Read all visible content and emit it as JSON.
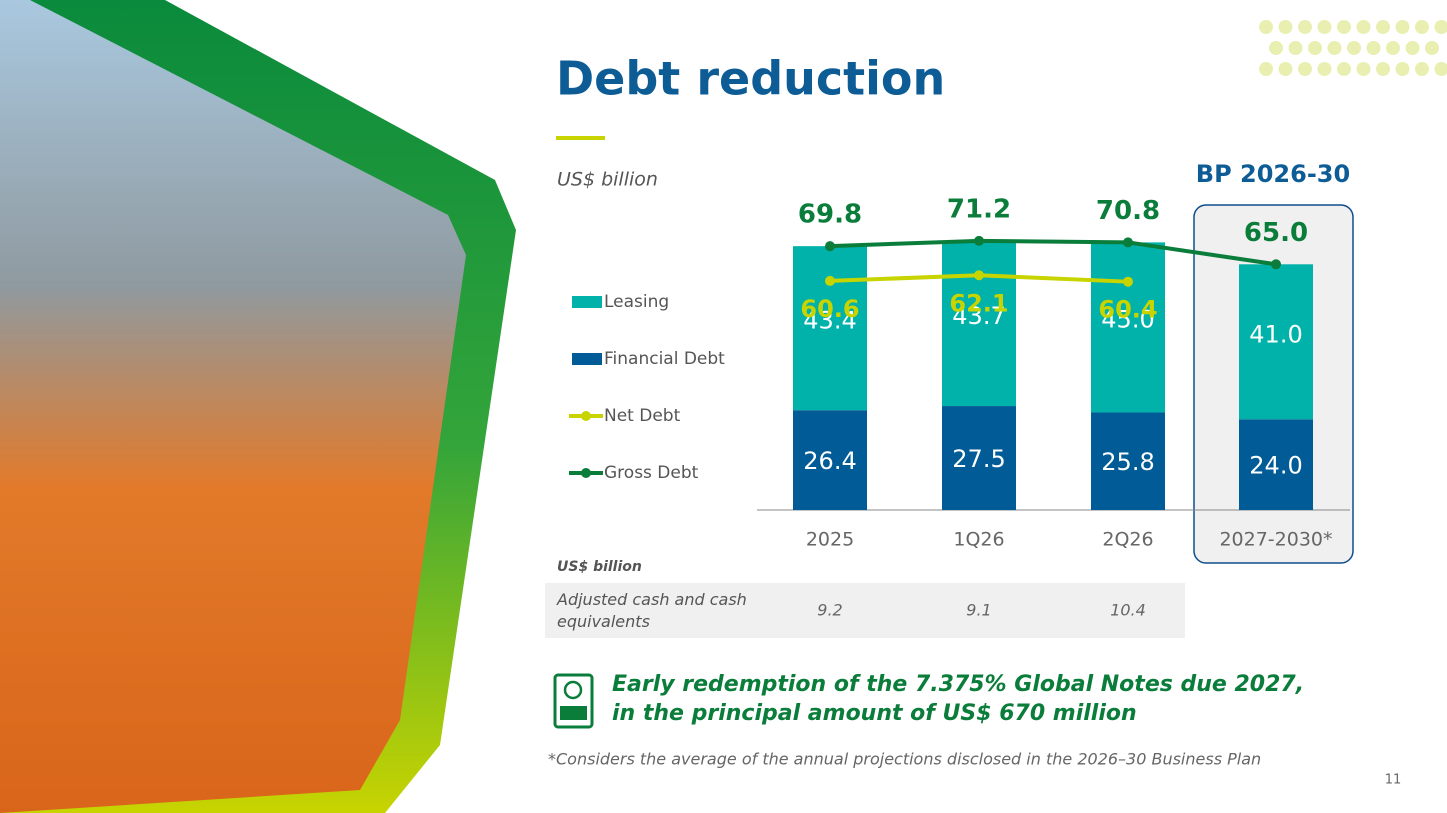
{
  "chart_data": {
    "type": "bar",
    "stacked": true,
    "title": "Debt reduction",
    "unit_label": "US$ billion",
    "highlight_label": "BP 2026-30",
    "categories": [
      "2025",
      "1Q26",
      "2Q26",
      "2027-2030*"
    ],
    "series": [
      {
        "name": "Leasing",
        "kind": "bar",
        "color": "#00b2a9",
        "values": [
          43.4,
          43.7,
          45.0,
          41.0
        ],
        "value_labels": [
          "43.4",
          "43.7",
          "45.0",
          "41.0"
        ]
      },
      {
        "name": "Financial Debt",
        "kind": "bar",
        "color": "#005b96",
        "values": [
          26.4,
          27.5,
          25.8,
          24.0
        ],
        "value_labels": [
          "26.4",
          "27.5",
          "25.8",
          "24.0"
        ]
      },
      {
        "name": "Net Debt",
        "kind": "line",
        "color": "#c8d400",
        "values": [
          60.6,
          62.1,
          60.4,
          null
        ]
      },
      {
        "name": "Gross Debt",
        "kind": "line",
        "color": "#0a7d3b",
        "values": [
          69.8,
          71.2,
          70.8,
          65.0
        ],
        "value_labels": [
          "69.8",
          "71.2",
          "70.8",
          "65.0"
        ]
      }
    ]
  },
  "table": {
    "unit": "US$ billion",
    "rows": [
      {
        "label": "Adjusted cash and cash equivalents",
        "values": [
          9.2,
          9.1,
          10.4
        ]
      }
    ]
  },
  "callout": "Early redemption of the 7.375% Global Notes due 2027, in the principal amount of US$ 670 million",
  "footnote": "*Considers the average of the annual projections disclosed in the 2026–30 Business Plan",
  "page_number": "11"
}
